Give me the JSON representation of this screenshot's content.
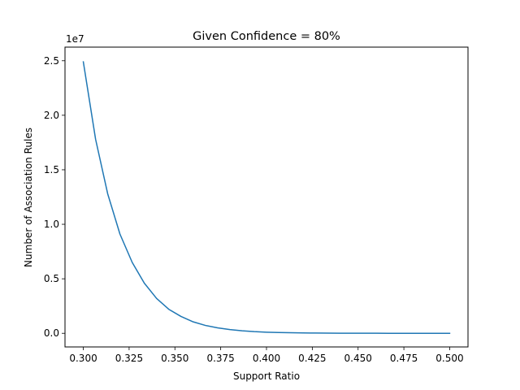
{
  "chart_data": {
    "type": "line",
    "title": "Given Confidence = 80%",
    "xlabel": "Support Ratio",
    "ylabel": "Number of Association Rules",
    "y_offset_label": "1e7",
    "xlim": [
      0.29,
      0.51
    ],
    "ylim": [
      -1250000,
      26250000
    ],
    "x_ticks": [
      {
        "value": 0.3,
        "label": "0.300"
      },
      {
        "value": 0.325,
        "label": "0.325"
      },
      {
        "value": 0.35,
        "label": "0.350"
      },
      {
        "value": 0.375,
        "label": "0.375"
      },
      {
        "value": 0.4,
        "label": "0.400"
      },
      {
        "value": 0.425,
        "label": "0.425"
      },
      {
        "value": 0.45,
        "label": "0.450"
      },
      {
        "value": 0.475,
        "label": "0.475"
      },
      {
        "value": 0.5,
        "label": "0.500"
      }
    ],
    "y_ticks": [
      {
        "value": 0,
        "label": "0.0"
      },
      {
        "value": 5000000,
        "label": "0.5"
      },
      {
        "value": 10000000,
        "label": "1.0"
      },
      {
        "value": 15000000,
        "label": "1.5"
      },
      {
        "value": 20000000,
        "label": "2.0"
      },
      {
        "value": 25000000,
        "label": "2.5"
      }
    ],
    "grid": false,
    "series": [
      {
        "color": "#1f77b4",
        "x": [
          0.3,
          0.3067,
          0.3133,
          0.32,
          0.3267,
          0.3333,
          0.34,
          0.3467,
          0.3533,
          0.36,
          0.3667,
          0.3733,
          0.38,
          0.3867,
          0.3933,
          0.4,
          0.4067,
          0.4133,
          0.42,
          0.4267,
          0.4333,
          0.44,
          0.4467,
          0.4533,
          0.46,
          0.4667,
          0.4733,
          0.48,
          0.4867,
          0.4933,
          0.5
        ],
        "y": [
          24900000,
          17800000,
          12800000,
          9100000,
          6500000,
          4600000,
          3200000,
          2200000,
          1550000,
          1050000,
          720000,
          500000,
          340000,
          230000,
          155000,
          105000,
          72000,
          50000,
          34000,
          23000,
          16000,
          11000,
          7500,
          5200,
          3600,
          2500,
          1700,
          1200,
          800,
          550,
          400
        ]
      }
    ]
  }
}
